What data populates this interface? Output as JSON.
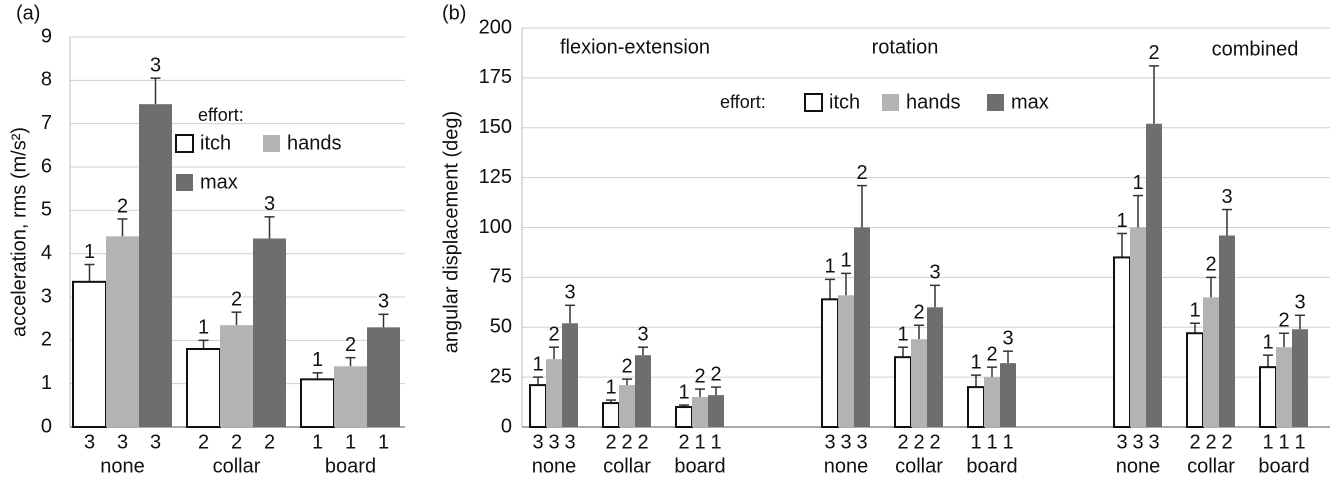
{
  "chart_data": [
    {
      "type": "bar",
      "panel_label": "(a)",
      "ylabel": "acceleration, rms (m/s²)",
      "legend_title": "effort:",
      "categories": [
        "none",
        "collar",
        "board"
      ],
      "ylim": [
        0,
        9
      ],
      "yticks": [
        0,
        1,
        2,
        3,
        4,
        5,
        6,
        7,
        8,
        9
      ],
      "grid": true,
      "series": [
        {
          "name": "itch",
          "color": "#ffffff",
          "values": [
            3.35,
            1.8,
            1.1
          ],
          "errors": [
            0.4,
            0.2,
            0.15
          ],
          "ranks": [
            1,
            1,
            1
          ],
          "counts": [
            3,
            2,
            1
          ]
        },
        {
          "name": "hands",
          "color": "#b3b3b3",
          "values": [
            4.4,
            2.35,
            1.4
          ],
          "errors": [
            0.4,
            0.3,
            0.2
          ],
          "ranks": [
            2,
            2,
            2
          ],
          "counts": [
            3,
            2,
            1
          ]
        },
        {
          "name": "max",
          "color": "#6e6e6e",
          "values": [
            7.45,
            4.35,
            2.3
          ],
          "errors": [
            0.6,
            0.5,
            0.3
          ],
          "ranks": [
            3,
            3,
            3
          ],
          "counts": [
            3,
            2,
            1
          ]
        }
      ]
    },
    {
      "type": "bar",
      "panel_label": "(b)",
      "ylabel": "angular displacement (deg)",
      "legend_title": "effort:",
      "groups": [
        "flexion-extension",
        "rotation",
        "combined"
      ],
      "categories": [
        "none",
        "collar",
        "board",
        "none",
        "collar",
        "board",
        "none",
        "collar",
        "board"
      ],
      "ylim": [
        0,
        200
      ],
      "yticks": [
        0,
        25,
        50,
        75,
        100,
        125,
        150,
        175,
        200
      ],
      "grid": true,
      "series": [
        {
          "name": "itch",
          "color": "#ffffff",
          "values": [
            21,
            12,
            10,
            64,
            35,
            20,
            85,
            47,
            30
          ],
          "errors": [
            4,
            1.5,
            1,
            10,
            5,
            6,
            12,
            5,
            6
          ],
          "ranks": [
            1,
            1,
            1,
            1,
            1,
            1,
            1,
            1,
            1
          ],
          "counts": [
            3,
            2,
            2,
            3,
            2,
            1,
            3,
            2,
            1
          ]
        },
        {
          "name": "hands",
          "color": "#b3b3b3",
          "values": [
            34,
            21,
            15,
            66,
            44,
            25,
            100,
            65,
            40
          ],
          "errors": [
            6,
            3,
            4,
            11,
            7,
            5,
            16,
            10,
            7
          ],
          "ranks": [
            2,
            2,
            2,
            1,
            2,
            2,
            1,
            2,
            2
          ],
          "counts": [
            3,
            2,
            1,
            3,
            2,
            1,
            3,
            2,
            1
          ]
        },
        {
          "name": "max",
          "color": "#6e6e6e",
          "values": [
            52,
            36,
            16,
            100,
            60,
            32,
            152,
            96,
            49
          ],
          "errors": [
            9,
            4,
            4,
            21,
            11,
            6,
            29,
            13,
            7
          ],
          "ranks": [
            3,
            3,
            2,
            2,
            3,
            3,
            2,
            3,
            3
          ],
          "counts": [
            3,
            2,
            1,
            3,
            2,
            1,
            3,
            2,
            1
          ]
        }
      ]
    }
  ]
}
